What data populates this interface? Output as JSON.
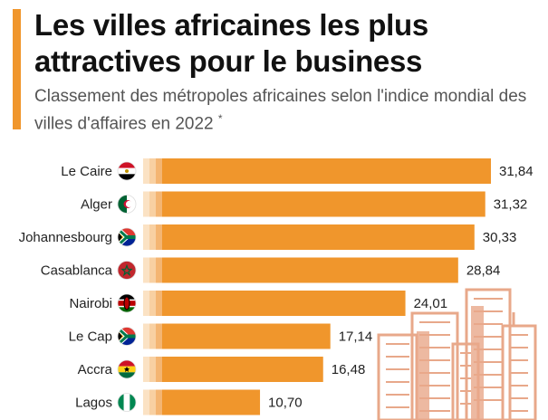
{
  "header": {
    "title": "Les villes africaines les plus attractives pour le business",
    "subtitle": "Classement des métropoles africaines selon l'indice mondial des villes d'affaires en 2022",
    "subtitle_marker": "*"
  },
  "colors": {
    "accent": "#f0962c",
    "bar": "#f0962c",
    "skyline": "#e8a88a"
  },
  "chart_data": {
    "type": "bar",
    "orientation": "horizontal",
    "categories": [
      "Le Caire",
      "Alger",
      "Johannesbourg",
      "Casablanca",
      "Nairobi",
      "Le Cap",
      "Accra",
      "Lagos"
    ],
    "values": [
      31.84,
      31.32,
      30.33,
      28.84,
      24.01,
      17.14,
      16.48,
      10.7
    ],
    "value_labels": [
      "31,84",
      "31,32",
      "30,33",
      "28,84",
      "24,01",
      "17,14",
      "16,48",
      "10,70"
    ],
    "flags": [
      "egypt-flag-icon",
      "algeria-flag-icon",
      "south-africa-flag-icon",
      "morocco-flag-icon",
      "kenya-flag-icon",
      "south-africa-flag-icon",
      "ghana-flag-icon",
      "nigeria-flag-icon"
    ],
    "xlim": [
      0,
      31.84
    ],
    "grid": false,
    "legend": "none"
  }
}
